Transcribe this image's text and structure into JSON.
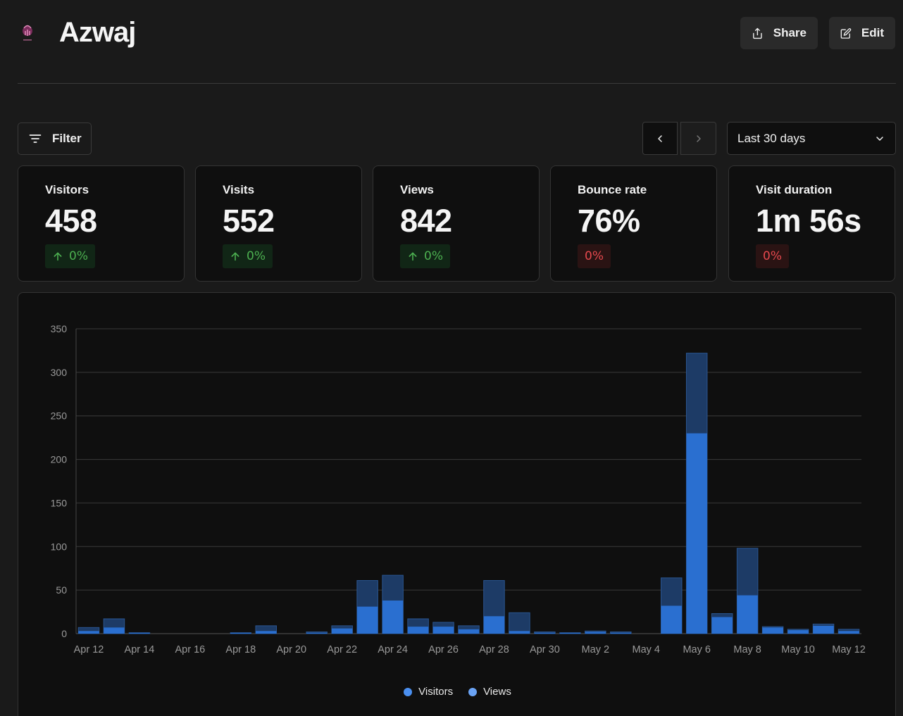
{
  "header": {
    "title": "Azwaj",
    "share_label": "Share",
    "edit_label": "Edit"
  },
  "toolbar": {
    "filter_label": "Filter",
    "date_range": "Last 30 days"
  },
  "metrics": [
    {
      "label": "Visitors",
      "value": "458",
      "change": "0%",
      "trend": "up"
    },
    {
      "label": "Visits",
      "value": "552",
      "change": "0%",
      "trend": "up"
    },
    {
      "label": "Views",
      "value": "842",
      "change": "0%",
      "trend": "up"
    },
    {
      "label": "Bounce rate",
      "value": "76%",
      "change": "0%",
      "trend": "down"
    },
    {
      "label": "Visit duration",
      "value": "1m 56s",
      "change": "0%",
      "trend": "down"
    }
  ],
  "colors": {
    "visitors": "#2a6fd0",
    "views": "#1d3b66",
    "legend_visitors": "#4a8ff0",
    "legend_views": "#6aa3f5"
  },
  "chart_data": {
    "type": "bar",
    "stacked_overlay": true,
    "categories": [
      "Apr 12",
      "Apr 13",
      "Apr 14",
      "Apr 15",
      "Apr 16",
      "Apr 17",
      "Apr 18",
      "Apr 19",
      "Apr 20",
      "Apr 21",
      "Apr 22",
      "Apr 23",
      "Apr 24",
      "Apr 25",
      "Apr 26",
      "Apr 27",
      "Apr 28",
      "Apr 29",
      "Apr 30",
      "May 1",
      "May 2",
      "May 3",
      "May 4",
      "May 5",
      "May 6",
      "May 7",
      "May 8",
      "May 9",
      "May 10",
      "May 11",
      "May 12"
    ],
    "tick_labels": [
      "Apr 12",
      "Apr 14",
      "Apr 16",
      "Apr 18",
      "Apr 20",
      "Apr 22",
      "Apr 24",
      "Apr 26",
      "Apr 28",
      "Apr 30",
      "May 2",
      "May 4",
      "May 6",
      "May 8",
      "May 10",
      "May 12"
    ],
    "series": [
      {
        "name": "Visitors",
        "values": [
          3,
          7,
          1,
          0,
          0,
          0,
          1,
          3,
          0,
          1,
          6,
          31,
          38,
          8,
          8,
          5,
          20,
          3,
          1,
          1,
          2,
          1,
          0,
          32,
          230,
          19,
          44,
          7,
          4,
          9,
          3
        ]
      },
      {
        "name": "Views",
        "values": [
          7,
          17,
          1,
          0,
          0,
          0,
          1,
          9,
          0,
          2,
          9,
          61,
          67,
          17,
          13,
          9,
          61,
          24,
          2,
          1,
          3,
          2,
          0,
          64,
          322,
          23,
          98,
          8,
          5,
          11,
          5
        ]
      }
    ],
    "y_ticks": [
      0,
      50,
      100,
      150,
      200,
      250,
      300,
      350
    ],
    "ylim": [
      0,
      350
    ],
    "grid": true,
    "legend_position": "bottom-center"
  }
}
